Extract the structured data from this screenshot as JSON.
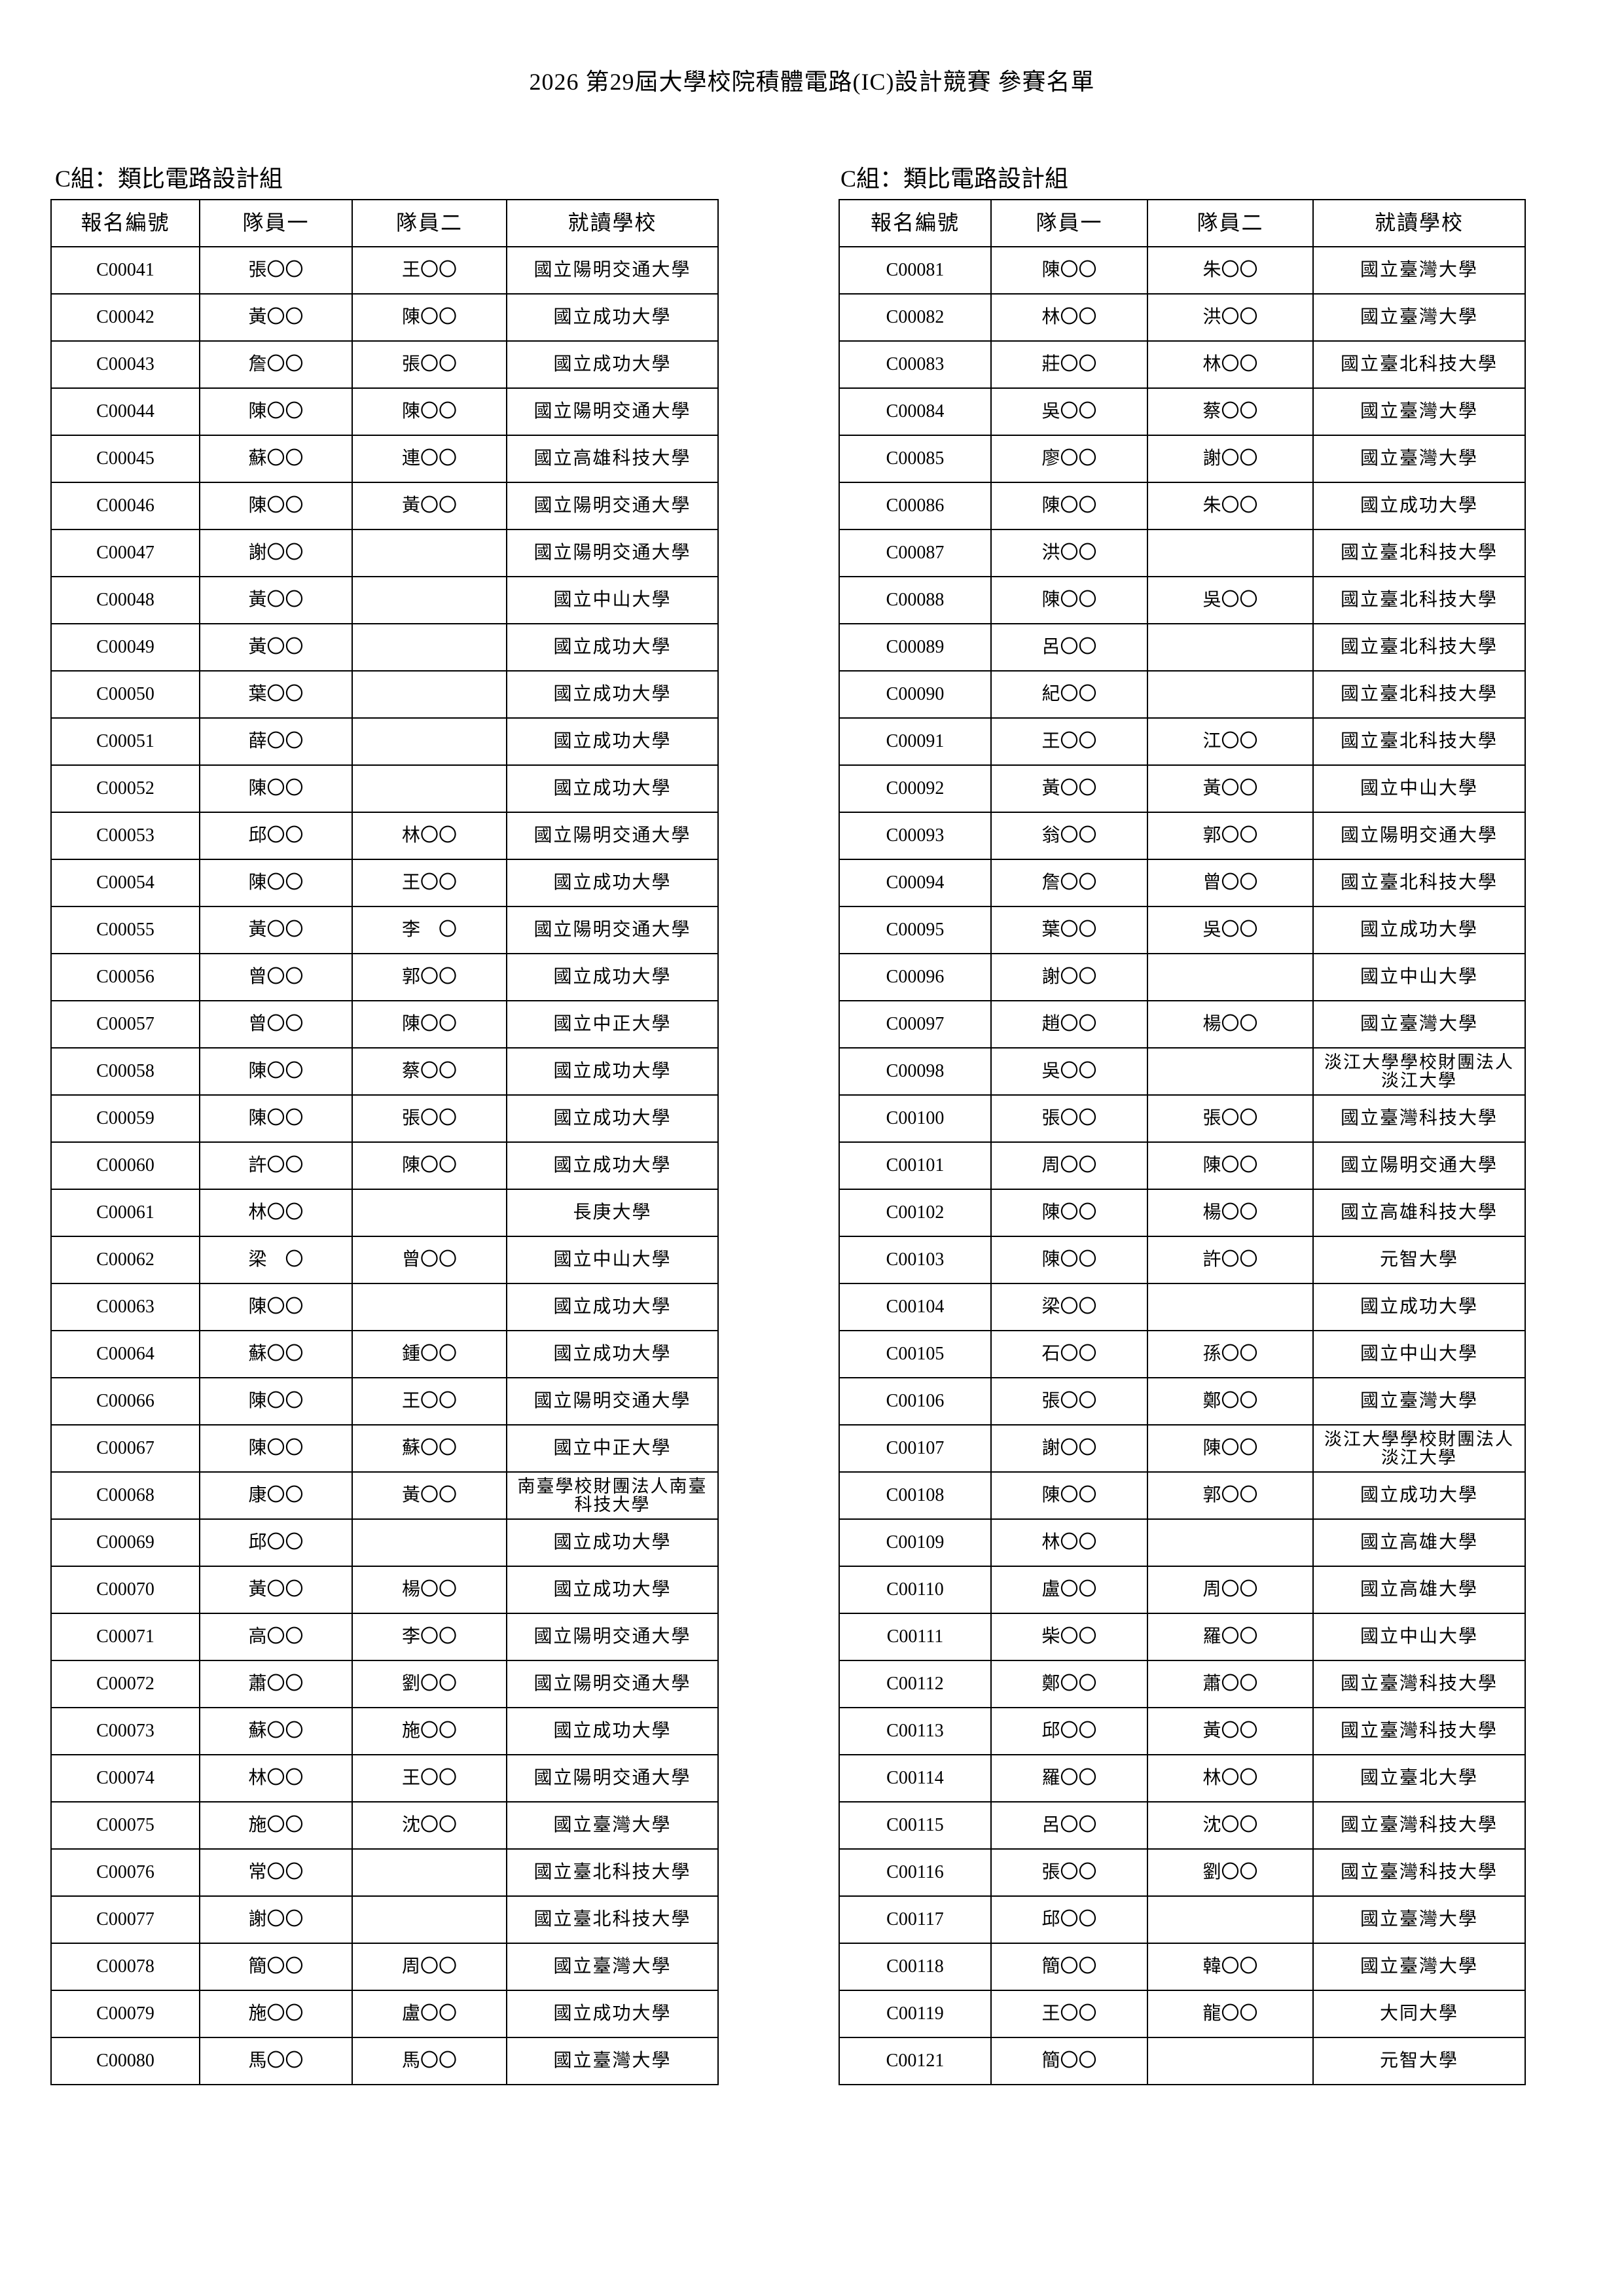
{
  "title": "2026 第29屆大學校院積體電路(IC)設計競賽 參賽名單",
  "tables": [
    {
      "label": "C組：類比電路設計組",
      "headers": [
        "報名編號",
        "隊員一",
        "隊員二",
        "就讀學校"
      ],
      "rows": [
        [
          "C00041",
          "張〇〇",
          "王〇〇",
          "國立陽明交通大學"
        ],
        [
          "C00042",
          "黃〇〇",
          "陳〇〇",
          "國立成功大學"
        ],
        [
          "C00043",
          "詹〇〇",
          "張〇〇",
          "國立成功大學"
        ],
        [
          "C00044",
          "陳〇〇",
          "陳〇〇",
          "國立陽明交通大學"
        ],
        [
          "C00045",
          "蘇〇〇",
          "連〇〇",
          "國立高雄科技大學"
        ],
        [
          "C00046",
          "陳〇〇",
          "黃〇〇",
          "國立陽明交通大學"
        ],
        [
          "C00047",
          "謝〇〇",
          "",
          "國立陽明交通大學"
        ],
        [
          "C00048",
          "黃〇〇",
          "",
          "國立中山大學"
        ],
        [
          "C00049",
          "黃〇〇",
          "",
          "國立成功大學"
        ],
        [
          "C00050",
          "葉〇〇",
          "",
          "國立成功大學"
        ],
        [
          "C00051",
          "薛〇〇",
          "",
          "國立成功大學"
        ],
        [
          "C00052",
          "陳〇〇",
          "",
          "國立成功大學"
        ],
        [
          "C00053",
          "邱〇〇",
          "林〇〇",
          "國立陽明交通大學"
        ],
        [
          "C00054",
          "陳〇〇",
          "王〇〇",
          "國立成功大學"
        ],
        [
          "C00055",
          "黃〇〇",
          "李　〇",
          "國立陽明交通大學"
        ],
        [
          "C00056",
          "曾〇〇",
          "郭〇〇",
          "國立成功大學"
        ],
        [
          "C00057",
          "曾〇〇",
          "陳〇〇",
          "國立中正大學"
        ],
        [
          "C00058",
          "陳〇〇",
          "蔡〇〇",
          "國立成功大學"
        ],
        [
          "C00059",
          "陳〇〇",
          "張〇〇",
          "國立成功大學"
        ],
        [
          "C00060",
          "許〇〇",
          "陳〇〇",
          "國立成功大學"
        ],
        [
          "C00061",
          "林〇〇",
          "",
          "長庚大學"
        ],
        [
          "C00062",
          "梁　〇",
          "曾〇〇",
          "國立中山大學"
        ],
        [
          "C00063",
          "陳〇〇",
          "",
          "國立成功大學"
        ],
        [
          "C00064",
          "蘇〇〇",
          "鍾〇〇",
          "國立成功大學"
        ],
        [
          "C00066",
          "陳〇〇",
          "王〇〇",
          "國立陽明交通大學"
        ],
        [
          "C00067",
          "陳〇〇",
          "蘇〇〇",
          "國立中正大學"
        ],
        [
          "C00068",
          "康〇〇",
          "黃〇〇",
          "南臺學校財團法人南臺科技大學"
        ],
        [
          "C00069",
          "邱〇〇",
          "",
          "國立成功大學"
        ],
        [
          "C00070",
          "黃〇〇",
          "楊〇〇",
          "國立成功大學"
        ],
        [
          "C00071",
          "高〇〇",
          "李〇〇",
          "國立陽明交通大學"
        ],
        [
          "C00072",
          "蕭〇〇",
          "劉〇〇",
          "國立陽明交通大學"
        ],
        [
          "C00073",
          "蘇〇〇",
          "施〇〇",
          "國立成功大學"
        ],
        [
          "C00074",
          "林〇〇",
          "王〇〇",
          "國立陽明交通大學"
        ],
        [
          "C00075",
          "施〇〇",
          "沈〇〇",
          "國立臺灣大學"
        ],
        [
          "C00076",
          "常〇〇",
          "",
          "國立臺北科技大學"
        ],
        [
          "C00077",
          "謝〇〇",
          "",
          "國立臺北科技大學"
        ],
        [
          "C00078",
          "簡〇〇",
          "周〇〇",
          "國立臺灣大學"
        ],
        [
          "C00079",
          "施〇〇",
          "盧〇〇",
          "國立成功大學"
        ],
        [
          "C00080",
          "馬〇〇",
          "馬〇〇",
          "國立臺灣大學"
        ]
      ]
    },
    {
      "label": "C組：類比電路設計組",
      "headers": [
        "報名編號",
        "隊員一",
        "隊員二",
        "就讀學校"
      ],
      "rows": [
        [
          "C00081",
          "陳〇〇",
          "朱〇〇",
          "國立臺灣大學"
        ],
        [
          "C00082",
          "林〇〇",
          "洪〇〇",
          "國立臺灣大學"
        ],
        [
          "C00083",
          "莊〇〇",
          "林〇〇",
          "國立臺北科技大學"
        ],
        [
          "C00084",
          "吳〇〇",
          "蔡〇〇",
          "國立臺灣大學"
        ],
        [
          "C00085",
          "廖〇〇",
          "謝〇〇",
          "國立臺灣大學"
        ],
        [
          "C00086",
          "陳〇〇",
          "朱〇〇",
          "國立成功大學"
        ],
        [
          "C00087",
          "洪〇〇",
          "",
          "國立臺北科技大學"
        ],
        [
          "C00088",
          "陳〇〇",
          "吳〇〇",
          "國立臺北科技大學"
        ],
        [
          "C00089",
          "呂〇〇",
          "",
          "國立臺北科技大學"
        ],
        [
          "C00090",
          "紀〇〇",
          "",
          "國立臺北科技大學"
        ],
        [
          "C00091",
          "王〇〇",
          "江〇〇",
          "國立臺北科技大學"
        ],
        [
          "C00092",
          "黃〇〇",
          "黃〇〇",
          "國立中山大學"
        ],
        [
          "C00093",
          "翁〇〇",
          "郭〇〇",
          "國立陽明交通大學"
        ],
        [
          "C00094",
          "詹〇〇",
          "曾〇〇",
          "國立臺北科技大學"
        ],
        [
          "C00095",
          "葉〇〇",
          "吳〇〇",
          "國立成功大學"
        ],
        [
          "C00096",
          "謝〇〇",
          "",
          "國立中山大學"
        ],
        [
          "C00097",
          "趙〇〇",
          "楊〇〇",
          "國立臺灣大學"
        ],
        [
          "C00098",
          "吳〇〇",
          "",
          "淡江大學學校財團法人淡江大學"
        ],
        [
          "C00100",
          "張〇〇",
          "張〇〇",
          "國立臺灣科技大學"
        ],
        [
          "C00101",
          "周〇〇",
          "陳〇〇",
          "國立陽明交通大學"
        ],
        [
          "C00102",
          "陳〇〇",
          "楊〇〇",
          "國立高雄科技大學"
        ],
        [
          "C00103",
          "陳〇〇",
          "許〇〇",
          "元智大學"
        ],
        [
          "C00104",
          "梁〇〇",
          "",
          "國立成功大學"
        ],
        [
          "C00105",
          "石〇〇",
          "孫〇〇",
          "國立中山大學"
        ],
        [
          "C00106",
          "張〇〇",
          "鄭〇〇",
          "國立臺灣大學"
        ],
        [
          "C00107",
          "謝〇〇",
          "陳〇〇",
          "淡江大學學校財團法人淡江大學"
        ],
        [
          "C00108",
          "陳〇〇",
          "郭〇〇",
          "國立成功大學"
        ],
        [
          "C00109",
          "林〇〇",
          "",
          "國立高雄大學"
        ],
        [
          "C00110",
          "盧〇〇",
          "周〇〇",
          "國立高雄大學"
        ],
        [
          "C00111",
          "柴〇〇",
          "羅〇〇",
          "國立中山大學"
        ],
        [
          "C00112",
          "鄭〇〇",
          "蕭〇〇",
          "國立臺灣科技大學"
        ],
        [
          "C00113",
          "邱〇〇",
          "黃〇〇",
          "國立臺灣科技大學"
        ],
        [
          "C00114",
          "羅〇〇",
          "林〇〇",
          "國立臺北大學"
        ],
        [
          "C00115",
          "呂〇〇",
          "沈〇〇",
          "國立臺灣科技大學"
        ],
        [
          "C00116",
          "張〇〇",
          "劉〇〇",
          "國立臺灣科技大學"
        ],
        [
          "C00117",
          "邱〇〇",
          "",
          "國立臺灣大學"
        ],
        [
          "C00118",
          "簡〇〇",
          "韓〇〇",
          "國立臺灣大學"
        ],
        [
          "C00119",
          "王〇〇",
          "龍〇〇",
          "大同大學"
        ],
        [
          "C00121",
          "簡〇〇",
          "",
          "元智大學"
        ]
      ]
    }
  ]
}
